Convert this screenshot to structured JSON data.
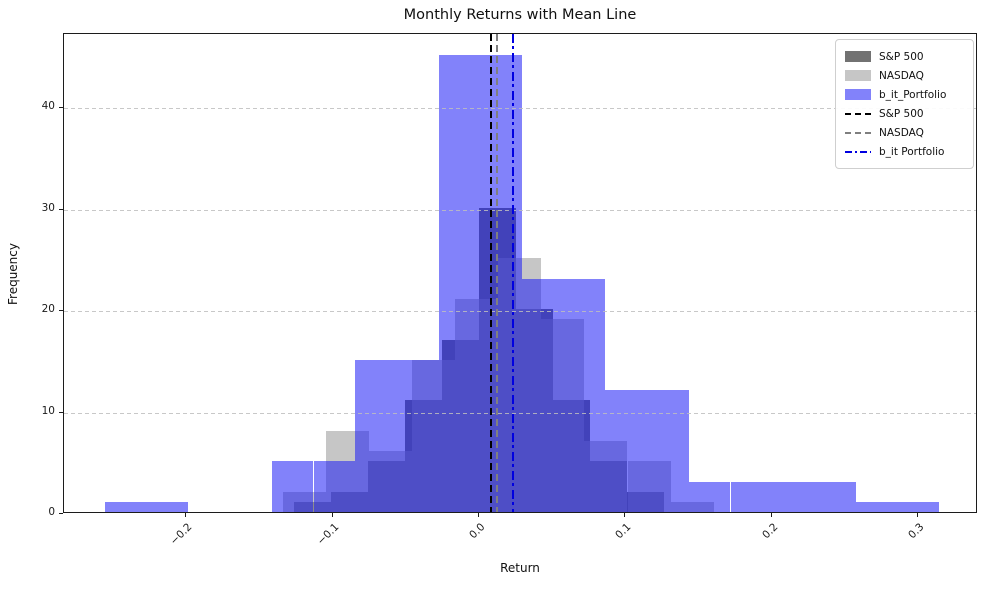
{
  "title": "Monthly Returns with Mean Line",
  "xlabel": "Return",
  "ylabel": "Frequency",
  "chart_data": {
    "type": "histogram",
    "title": "Monthly Returns with Mean Line",
    "xlabel": "Return",
    "ylabel": "Frequency",
    "xlim": [
      -0.2833,
      0.3407
    ],
    "ylim": [
      0,
      47.3
    ],
    "xtick_values": [
      -0.2,
      -0.1,
      0.0,
      0.1,
      0.2,
      0.3
    ],
    "xtick_labels": [
      "−0.2",
      "−0.1",
      "0.0",
      "0.1",
      "0.2",
      "0.3"
    ],
    "ytick_values": [
      0,
      10,
      20,
      30,
      40
    ],
    "ytick_labels": [
      "0",
      "10",
      "20",
      "30",
      "40"
    ],
    "grid": "horizontal-dashed",
    "legend_position": "upper-right",
    "series": [
      {
        "name": "S&P 500",
        "color": "#3c3c3c",
        "alpha": 0.72,
        "bin_start": -0.1263,
        "bin_width": 0.02526,
        "counts": [
          1,
          2,
          5,
          11,
          17,
          30,
          20,
          11,
          5,
          2
        ],
        "mean": 0.008,
        "mean_line": {
          "color": "#000000",
          "style": "dashed",
          "label": "S&P 500"
        }
      },
      {
        "name": "NASDAQ",
        "color": "#a0a0a0",
        "alpha": 0.6,
        "bin_start": -0.1338,
        "bin_width": 0.0294,
        "counts": [
          2,
          8,
          6,
          15,
          21,
          25,
          19,
          7,
          5,
          1
        ],
        "mean": 0.012,
        "mean_line": {
          "color": "#7f7f7f",
          "style": "dashed",
          "label": "NASDAQ"
        }
      },
      {
        "name": "b_it_Portfolio",
        "color": "#1c1cf5",
        "alpha": 0.55,
        "bin_start": -0.2553,
        "bin_width": 0.02847,
        "counts": [
          1,
          1,
          0,
          0,
          5,
          5,
          15,
          15,
          45,
          45,
          23,
          23,
          12,
          12,
          3,
          3,
          3,
          3,
          1,
          1
        ],
        "mean": 0.023,
        "mean_line": {
          "color": "#0000e0",
          "style": "dashdot",
          "label": "b_it Portfolio"
        }
      }
    ],
    "legend": {
      "rows": [
        {
          "type": "patch",
          "series": 0,
          "label": "S&P 500"
        },
        {
          "type": "patch",
          "series": 1,
          "label": "NASDAQ"
        },
        {
          "type": "patch",
          "series": 2,
          "label": "b_it_Portfolio"
        },
        {
          "type": "line",
          "series": 0,
          "label": "S&P 500"
        },
        {
          "type": "line",
          "series": 1,
          "label": "NASDAQ"
        },
        {
          "type": "line",
          "series": 2,
          "label": "b_it Portfolio"
        }
      ]
    }
  }
}
